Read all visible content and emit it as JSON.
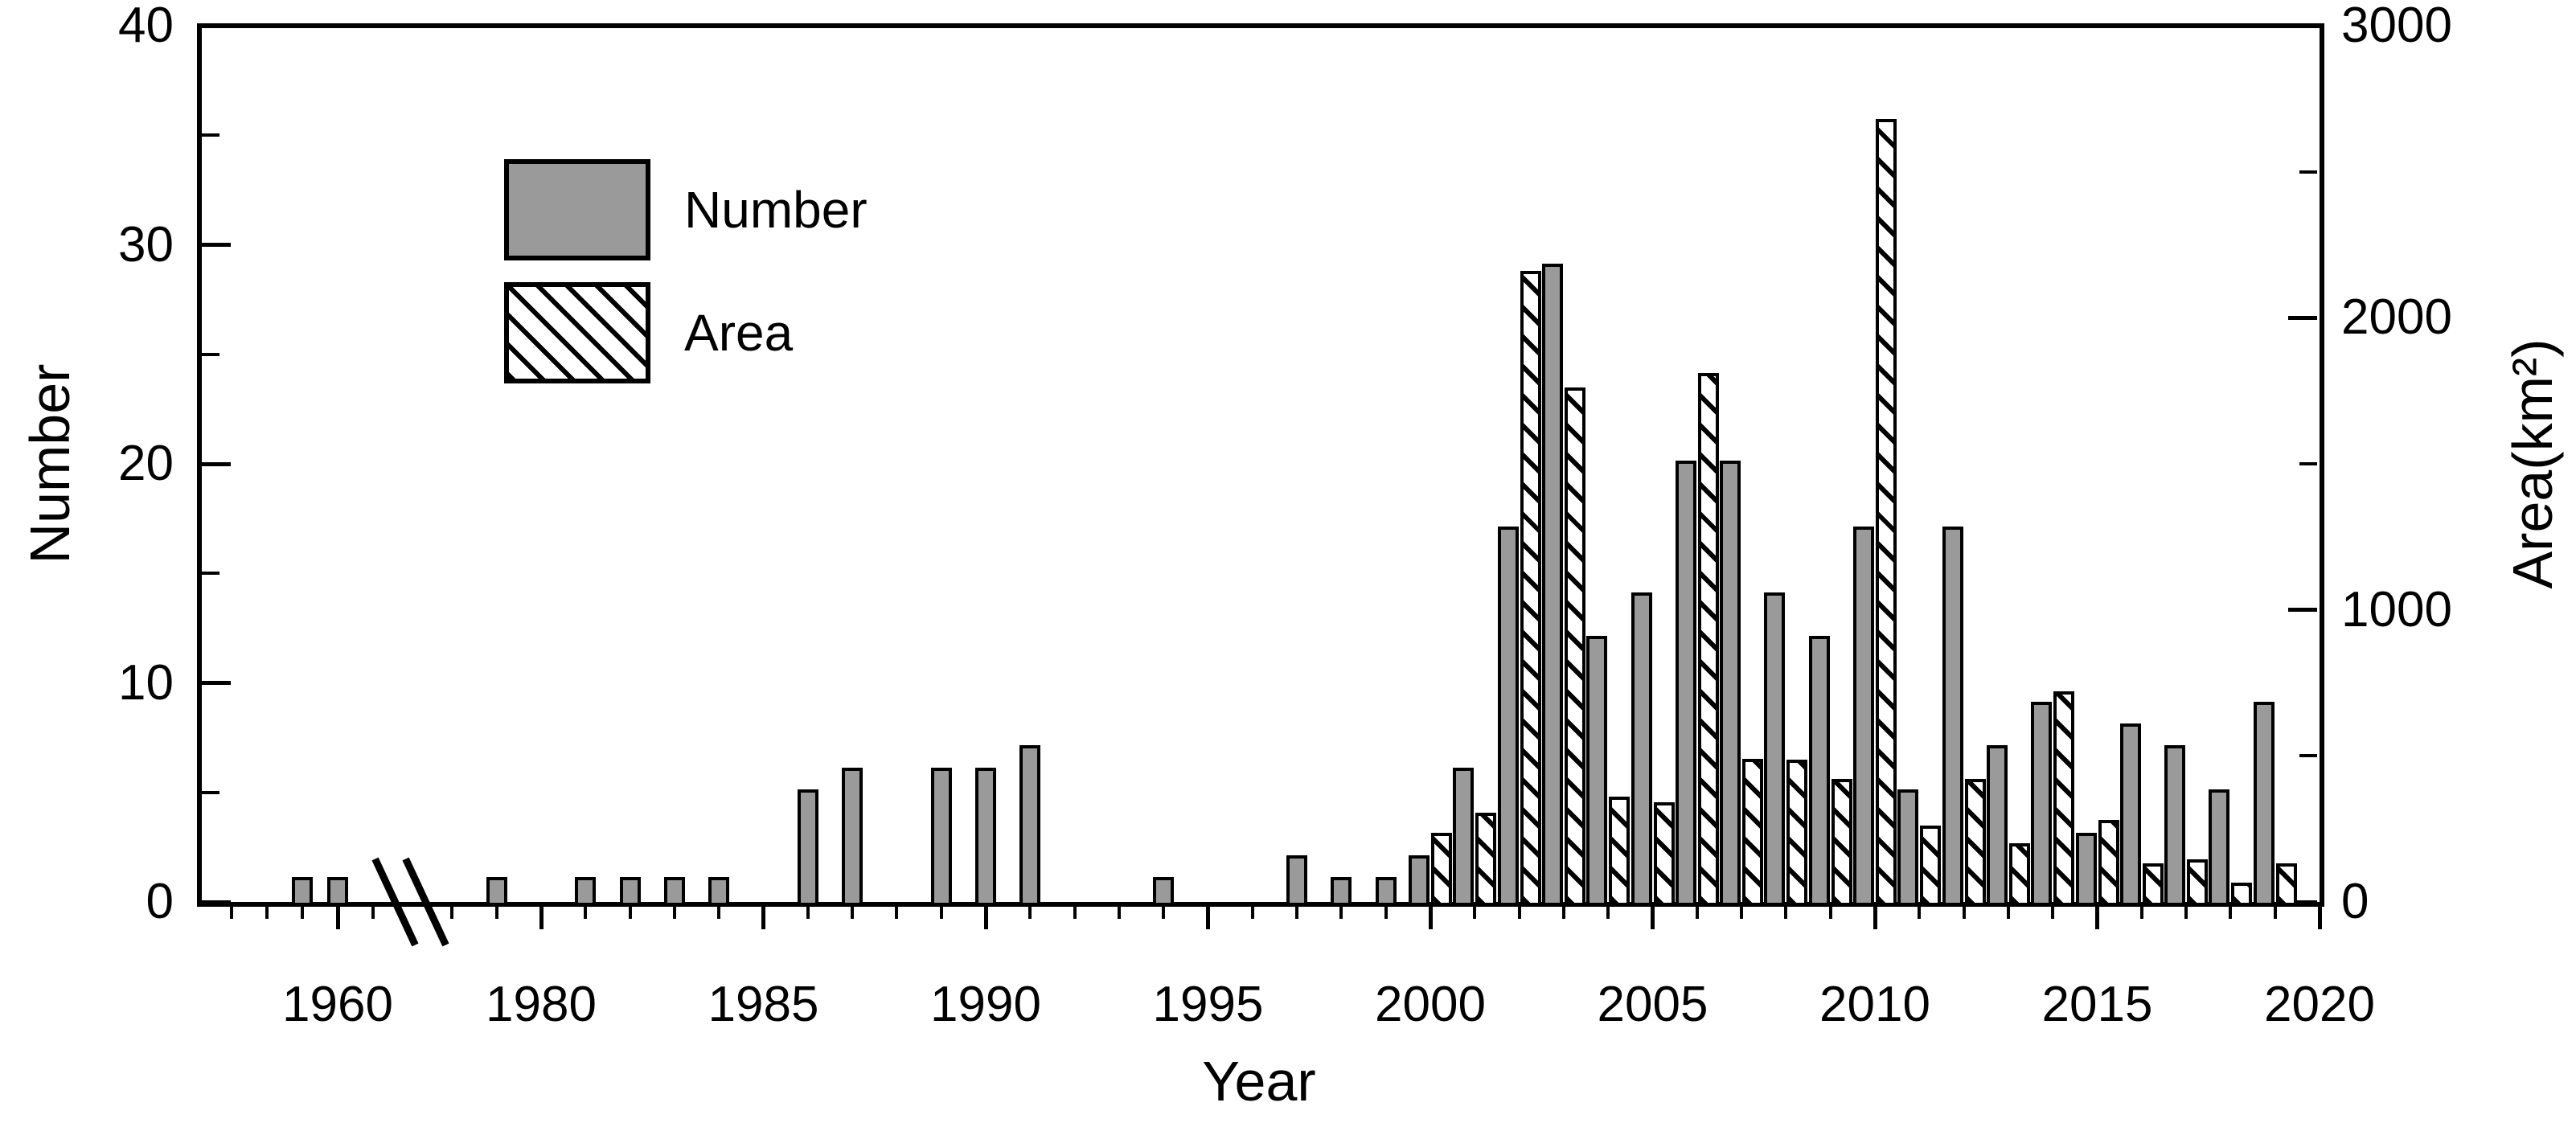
{
  "chart_data": {
    "type": "bar",
    "title": "",
    "xlabel": "Year",
    "ylabel_left": "Number",
    "ylabel_right": "Area(km²)",
    "legend": [
      {
        "label": "Number",
        "swatch": "solid-gray"
      },
      {
        "label": "Area",
        "swatch": "hatched-diagonal"
      }
    ],
    "left_axis": {
      "label": "Number",
      "range": [
        0,
        40
      ],
      "major_ticks": [
        0,
        10,
        20,
        30,
        40
      ],
      "minor_ticks": [
        5,
        15,
        25,
        35
      ],
      "tick_labels": [
        "0",
        "10",
        "20",
        "30",
        "40"
      ]
    },
    "right_axis": {
      "label": "Area(km²)",
      "range": [
        0,
        3000
      ],
      "major_ticks": [
        0,
        1000,
        2000,
        3000
      ],
      "minor_ticks": [
        500,
        1500,
        2500
      ],
      "tick_labels": [
        "0",
        "1000",
        "2000",
        "3000"
      ]
    },
    "x_axis": {
      "label": "Year",
      "labeled_ticks": [
        1960,
        1980,
        1985,
        1990,
        1995,
        2000,
        2005,
        2010,
        2015,
        2020
      ],
      "pre_break_years": [
        1957,
        1958,
        1959,
        1960,
        1961
      ],
      "post_break_start": 1978,
      "post_break_end": 2020,
      "axis_break_between": [
        1961,
        1978
      ]
    },
    "series": [
      {
        "name": "Number",
        "axis": "left",
        "style": "solid-gray",
        "points": [
          [
            1959,
            1
          ],
          [
            1960,
            1
          ],
          [
            1979,
            1
          ],
          [
            1981,
            1
          ],
          [
            1982,
            1
          ],
          [
            1983,
            1
          ],
          [
            1984,
            1
          ],
          [
            1986,
            5
          ],
          [
            1987,
            6
          ],
          [
            1989,
            6
          ],
          [
            1990,
            6
          ],
          [
            1991,
            7
          ],
          [
            1994,
            1
          ],
          [
            1997,
            2
          ],
          [
            1998,
            1
          ],
          [
            1999,
            1
          ],
          [
            2000,
            2
          ],
          [
            2001,
            6
          ],
          [
            2002,
            17
          ],
          [
            2003,
            29
          ],
          [
            2004,
            12
          ],
          [
            2005,
            14
          ],
          [
            2006,
            20
          ],
          [
            2007,
            20
          ],
          [
            2008,
            14
          ],
          [
            2009,
            12
          ],
          [
            2010,
            17
          ],
          [
            2011,
            5
          ],
          [
            2012,
            17
          ],
          [
            2013,
            7
          ],
          [
            2014,
            9
          ],
          [
            2015,
            3
          ],
          [
            2016,
            8
          ],
          [
            2017,
            7
          ],
          [
            2018,
            5
          ],
          [
            2019,
            9
          ]
        ]
      },
      {
        "name": "Area",
        "axis": "right",
        "style": "hatched-diagonal",
        "points": [
          [
            2000,
            225
          ],
          [
            2001,
            295
          ],
          [
            2002,
            2150
          ],
          [
            2003,
            1750
          ],
          [
            2004,
            350
          ],
          [
            2005,
            330
          ],
          [
            2006,
            1800
          ],
          [
            2007,
            480
          ],
          [
            2008,
            475
          ],
          [
            2009,
            410
          ],
          [
            2010,
            2670
          ],
          [
            2011,
            250
          ],
          [
            2012,
            410
          ],
          [
            2013,
            190
          ],
          [
            2014,
            710
          ],
          [
            2015,
            270
          ],
          [
            2016,
            120
          ],
          [
            2017,
            135
          ],
          [
            2018,
            55
          ],
          [
            2019,
            120
          ]
        ]
      }
    ]
  },
  "colors": {
    "bar_gray": "#9a9a9a",
    "ink": "#000000",
    "background": "#ffffff"
  }
}
